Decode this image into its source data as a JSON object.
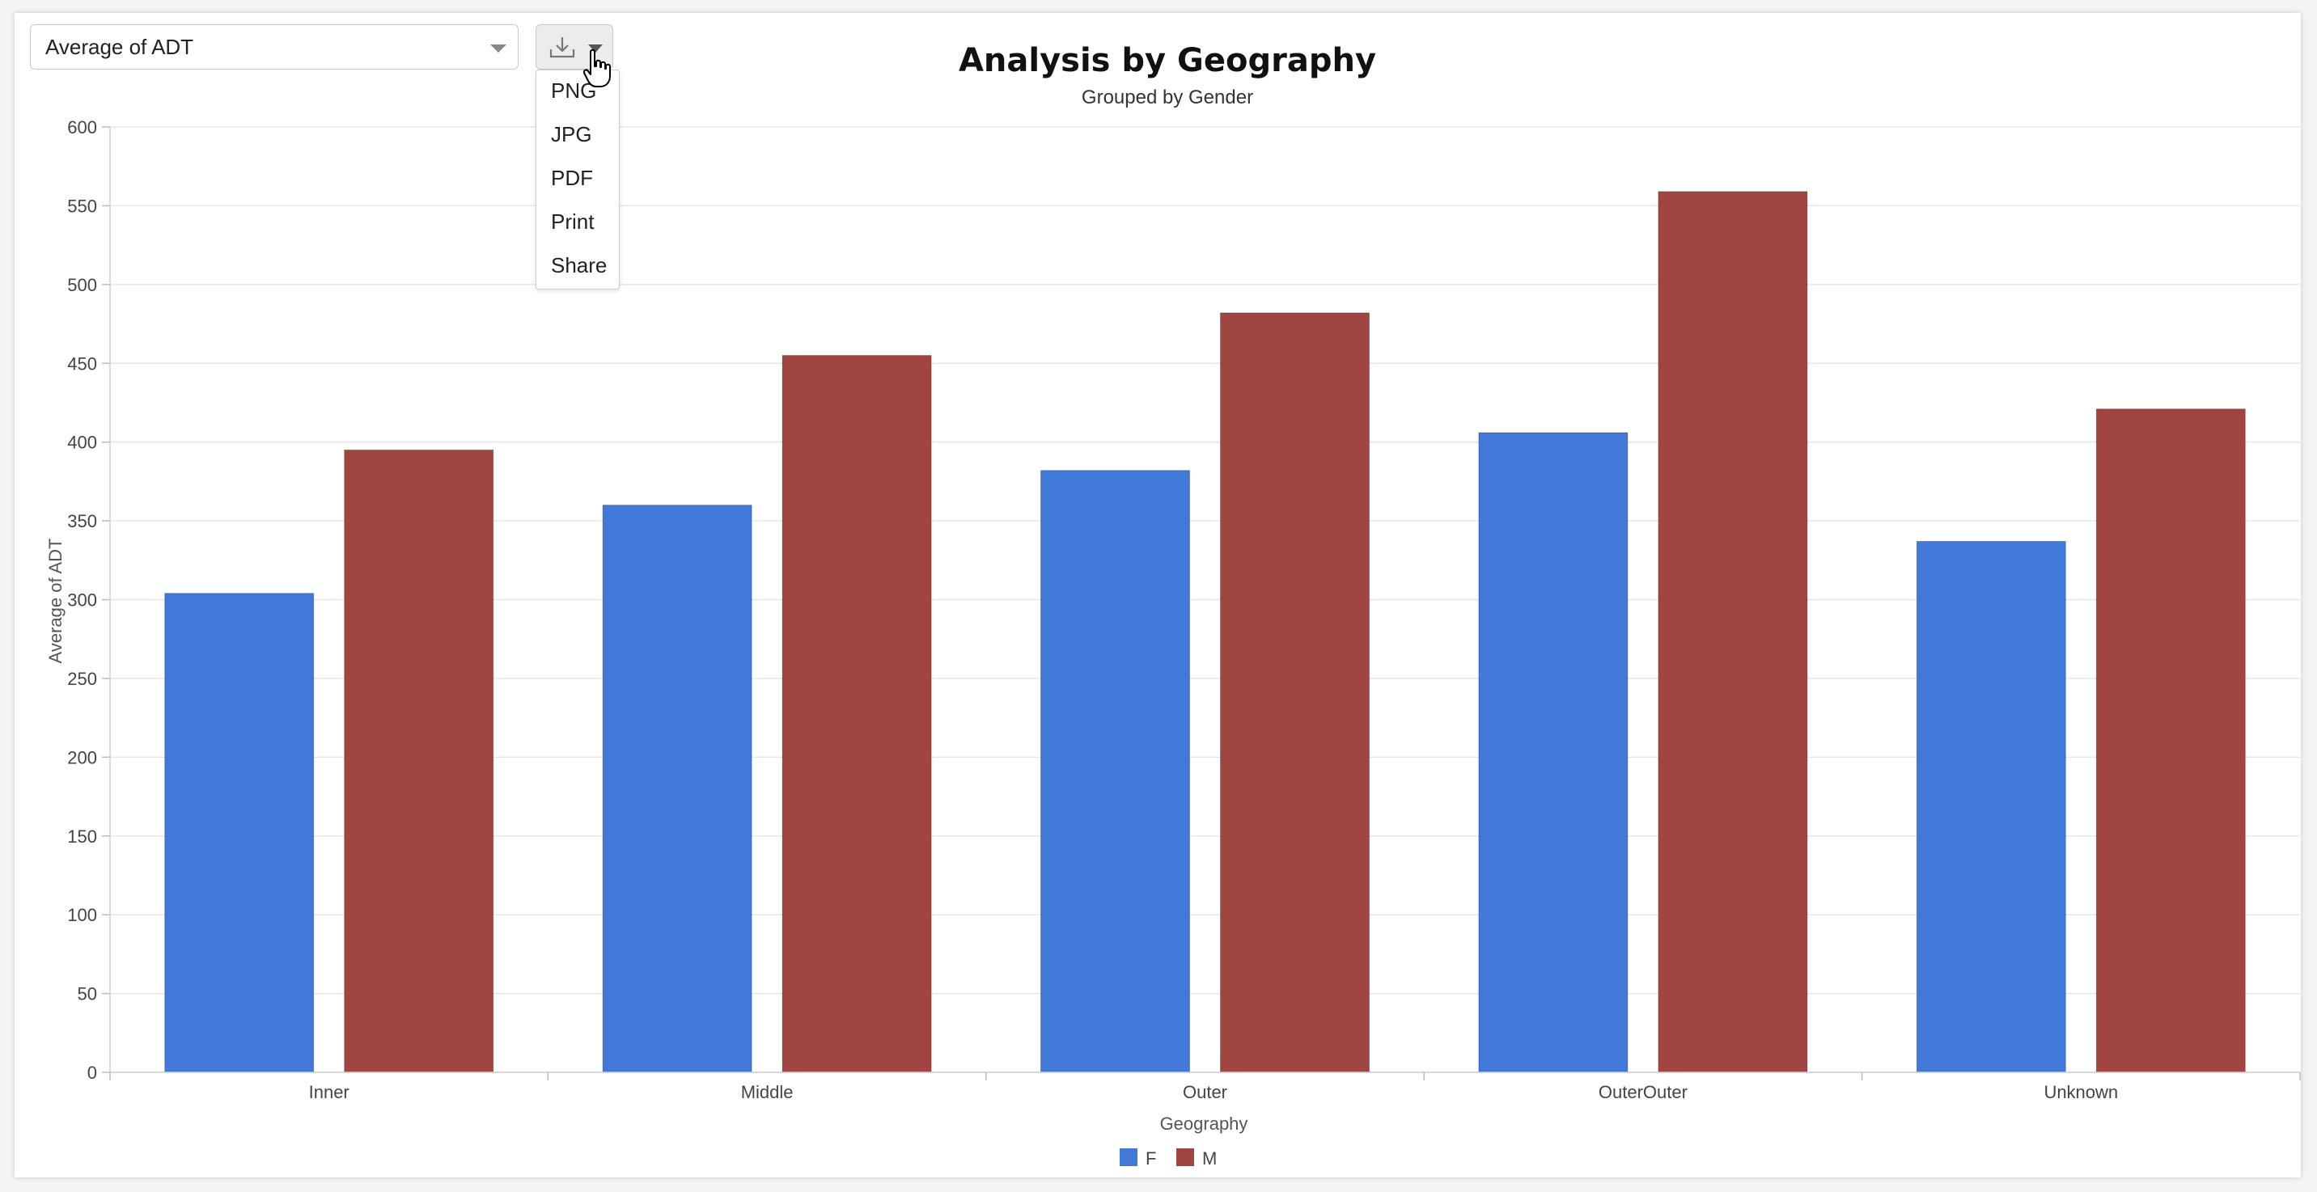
{
  "controls": {
    "measure_select": "Average of ADT",
    "export_menu": [
      "PNG",
      "JPG",
      "PDF",
      "Print",
      "Share"
    ]
  },
  "chart_data": {
    "type": "bar",
    "title": "Analysis by Geography",
    "subtitle": "Grouped by Gender",
    "xlabel": "Geography",
    "ylabel": "Average of ADT",
    "categories": [
      "Inner",
      "Middle",
      "Outer",
      "OuterOuter",
      "Unknown"
    ],
    "series": [
      {
        "name": "F",
        "color": "#4279d8",
        "values": [
          304,
          360,
          382,
          406,
          337
        ]
      },
      {
        "name": "M",
        "color": "#a04542",
        "values": [
          395,
          455,
          482,
          559,
          421
        ]
      }
    ],
    "ylim": [
      0,
      600
    ],
    "yticks": [
      0,
      50,
      100,
      150,
      200,
      250,
      300,
      350,
      400,
      450,
      500,
      550,
      600
    ],
    "grid": true,
    "legend": "bottom-center"
  }
}
